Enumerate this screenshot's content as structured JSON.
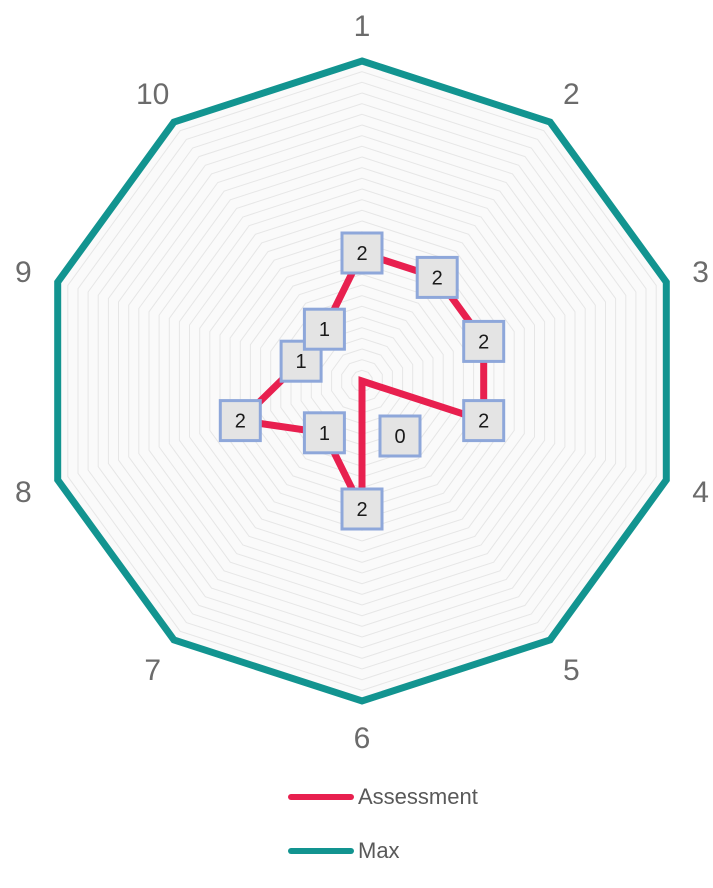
{
  "chart_data": {
    "type": "radar",
    "categories": [
      "1",
      "2",
      "3",
      "4",
      "5",
      "6",
      "7",
      "8",
      "9",
      "10"
    ],
    "series": [
      {
        "name": "Assessment",
        "values": [
          2,
          2,
          2,
          2,
          0,
          2,
          1,
          2,
          1,
          1
        ],
        "color": "#e8204f",
        "data_labels": true
      },
      {
        "name": "Max",
        "values": [
          5,
          5,
          5,
          5,
          5,
          5,
          5,
          5,
          5,
          5
        ],
        "color": "#129490",
        "data_labels": false
      }
    ],
    "rlim": [
      0,
      5
    ],
    "grid": true,
    "legend_placement": "bottom",
    "label_style": {
      "fill": "#e4e4e4",
      "border": "#8ea7da"
    }
  }
}
